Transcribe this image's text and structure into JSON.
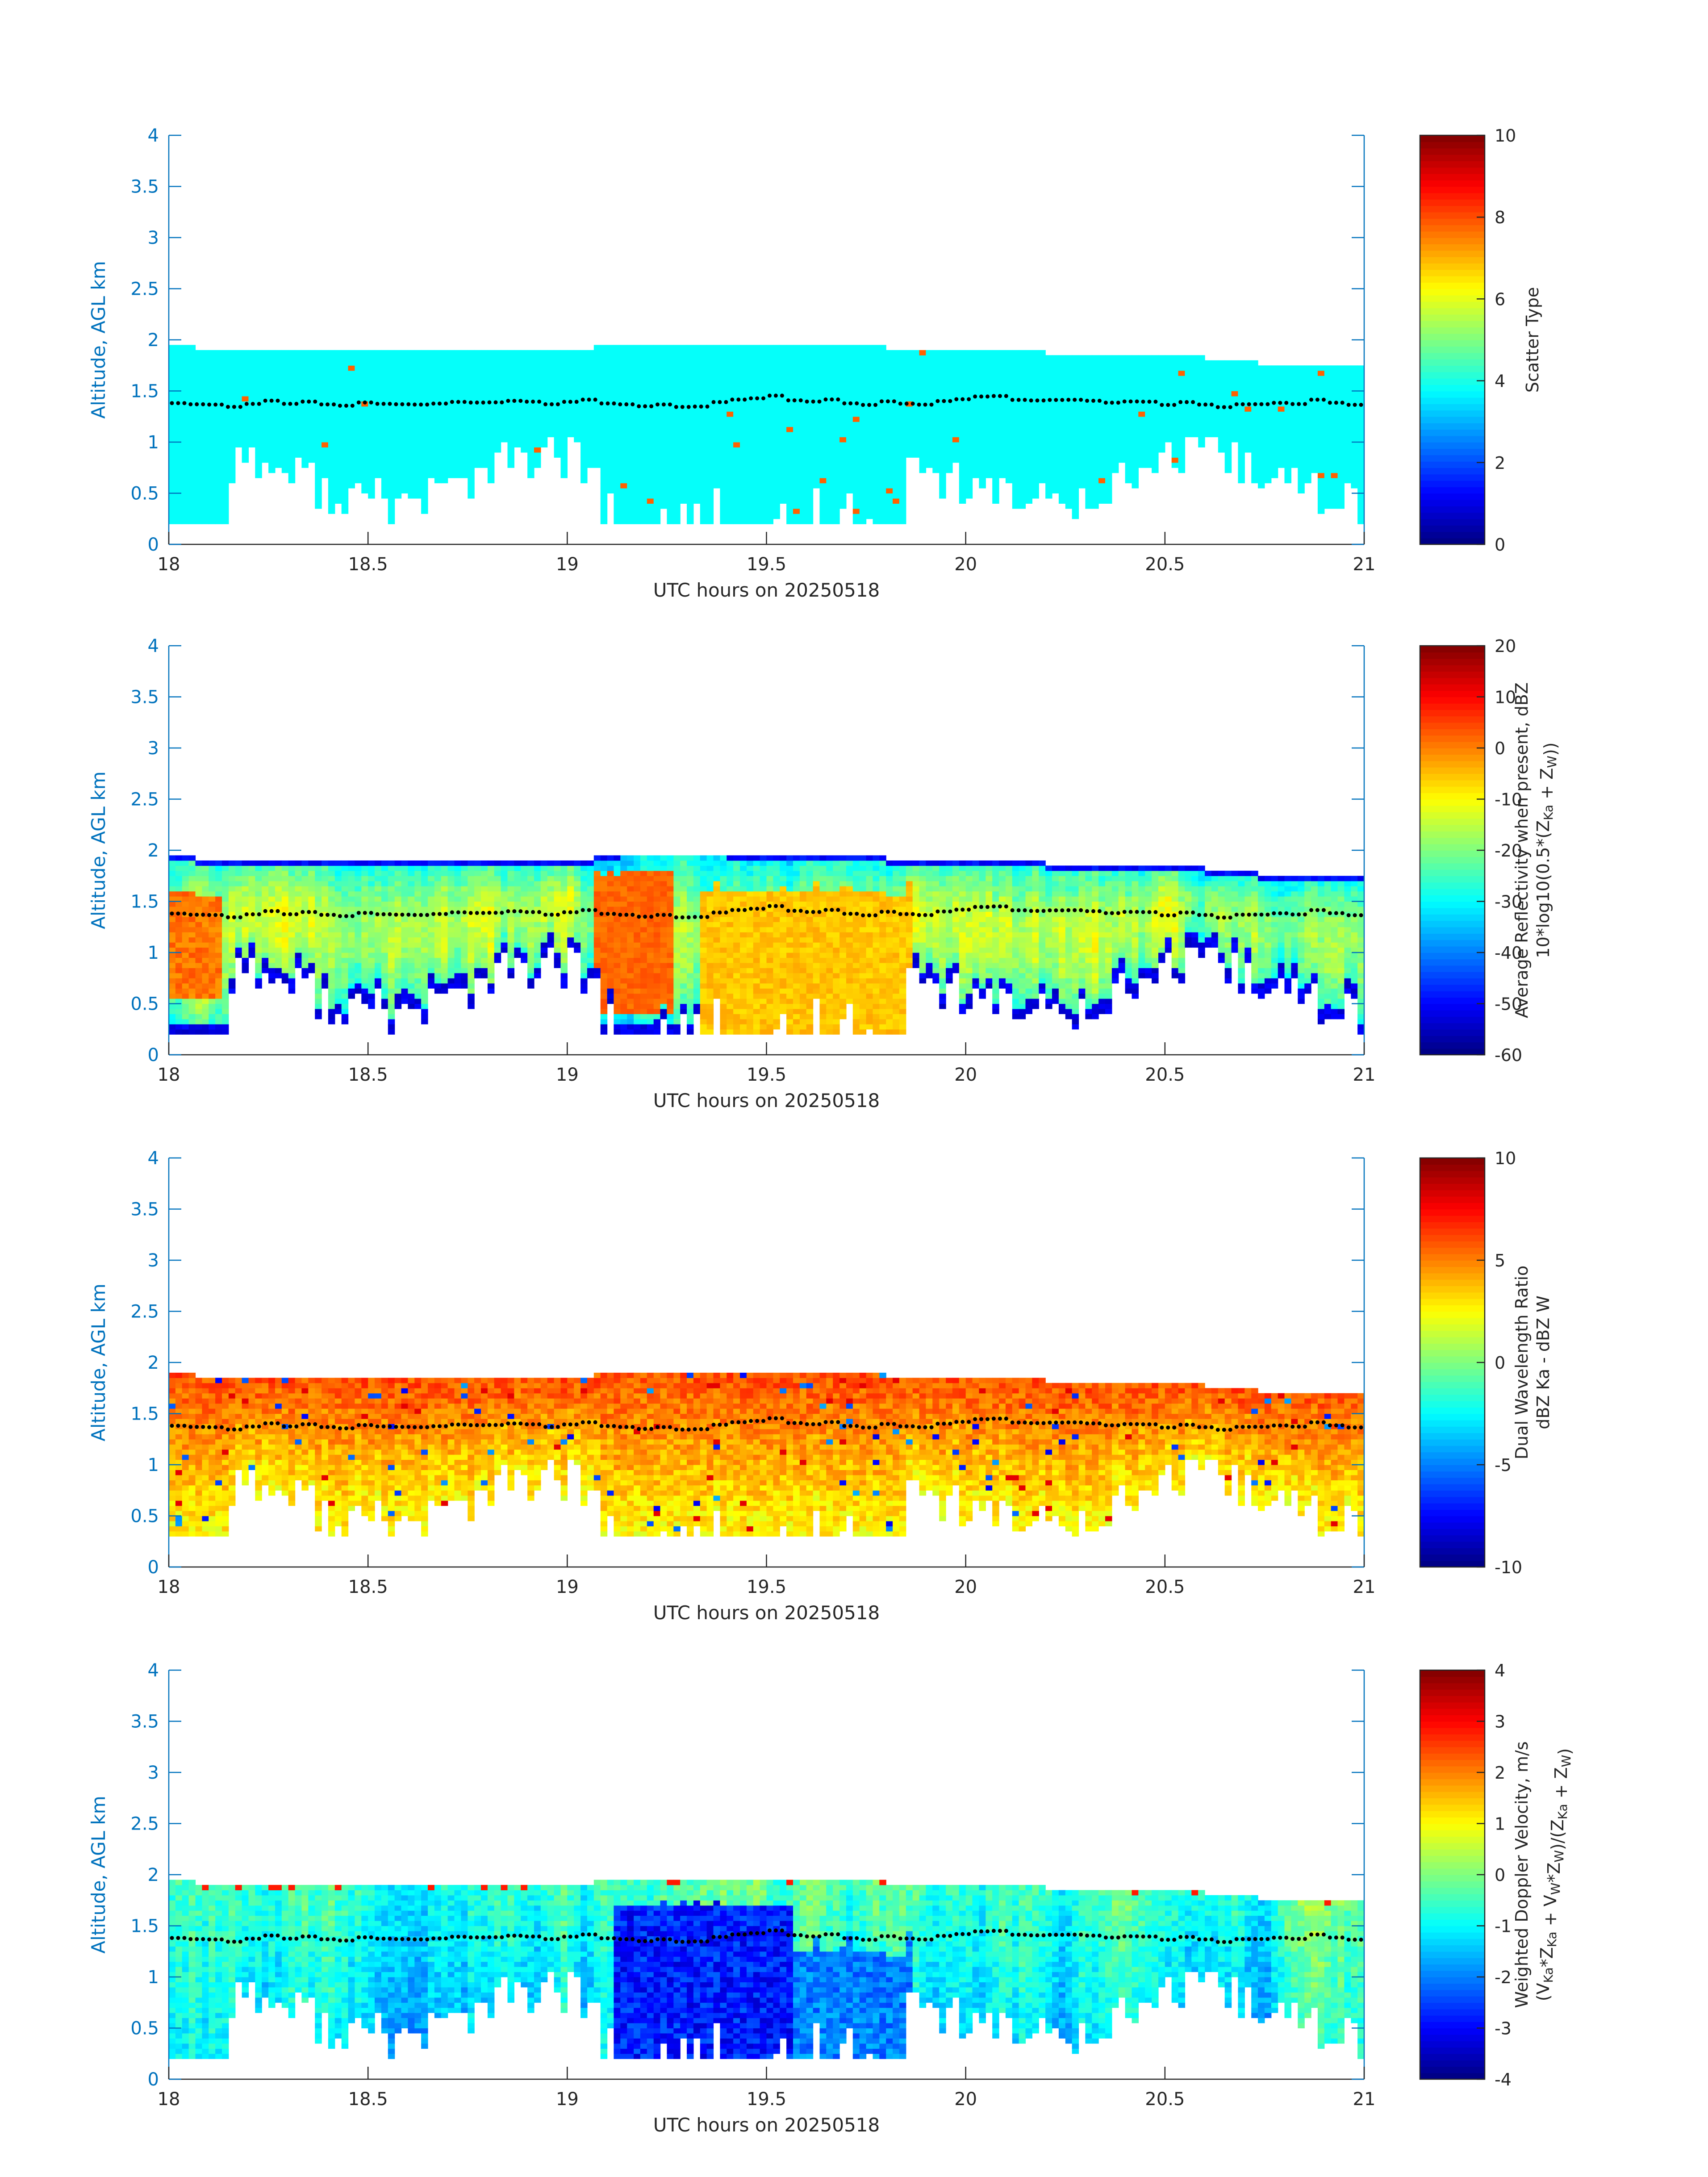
{
  "figure": {
    "date_label": "20250518",
    "x_axis_label": "UTC hours on 20250518"
  },
  "chart_data": [
    {
      "type": "heatmap",
      "panel": "scatter-type",
      "xlabel": "UTC hours on 20250518",
      "ylabel": "Altitude, AGL km",
      "xlim": [
        18,
        21
      ],
      "ylim": [
        0,
        4
      ],
      "xticks": [
        18,
        18.5,
        19,
        19.5,
        20,
        20.5,
        21
      ],
      "yticks": [
        0,
        0.5,
        1,
        1.5,
        2,
        2.5,
        3,
        3.5,
        4
      ],
      "colorbar": {
        "label_lines": [
          "Scatter Type"
        ],
        "range": [
          0,
          10
        ],
        "ticks": [
          0,
          2,
          4,
          6,
          8,
          10
        ]
      },
      "colormap": "jet",
      "dominant_value": 3.8,
      "rare_value": 7.8,
      "cloud_base_km": 0.18,
      "melting_layer_dots_km": 1.4,
      "top_km": [
        1.93,
        1.87,
        1.87,
        1.87,
        1.87,
        1.87,
        1.87,
        1.87,
        1.87,
        1.87,
        1.87,
        1.87,
        1.87,
        1.87,
        1.87,
        1.87,
        1.92,
        1.95,
        1.95,
        1.95,
        1.95,
        1.93,
        1.93,
        1.93,
        1.93,
        1.93,
        1.93,
        1.87,
        1.87,
        1.87,
        1.87,
        1.87,
        1.87,
        1.83,
        1.83,
        1.83,
        1.83,
        1.83,
        1.83,
        1.77,
        1.77,
        1.74,
        1.74,
        1.74,
        1.74
      ]
    },
    {
      "type": "heatmap",
      "panel": "reflectivity",
      "xlabel": "UTC hours on 20250518",
      "ylabel": "Altitude, AGL km",
      "xlim": [
        18,
        21
      ],
      "ylim": [
        0,
        4
      ],
      "xticks": [
        18,
        18.5,
        19,
        19.5,
        20,
        20.5,
        21
      ],
      "yticks": [
        0,
        0.5,
        1,
        1.5,
        2,
        2.5,
        3,
        3.5,
        4
      ],
      "colorbar": {
        "label_lines": [
          "Average Reflectivity when present, dBZ",
          "10*log10(0.5*(Z_Ka + Z_W))"
        ],
        "range": [
          -60,
          20
        ],
        "ticks": [
          -60,
          -50,
          -40,
          -30,
          -20,
          -10,
          0,
          10,
          20
        ]
      },
      "colormap": "jet",
      "value_range_dbz": [
        -55,
        5
      ],
      "melting_layer_dots_km": 1.4
    },
    {
      "type": "heatmap",
      "panel": "dual-wavelength-ratio",
      "xlabel": "UTC hours on 20250518",
      "ylabel": "Altitude, AGL km",
      "xlim": [
        18,
        21
      ],
      "ylim": [
        0,
        4
      ],
      "xticks": [
        18,
        18.5,
        19,
        19.5,
        20,
        20.5,
        21
      ],
      "yticks": [
        0,
        0.5,
        1,
        1.5,
        2,
        2.5,
        3,
        3.5,
        4
      ],
      "colorbar": {
        "label_lines": [
          "Dual Wavelength Ratio",
          "dBZ Ka - dBZ W"
        ],
        "range": [
          -10,
          10
        ],
        "ticks": [
          -10,
          -5,
          0,
          5,
          10
        ]
      },
      "colormap": "jet",
      "value_range_db": [
        -2,
        8
      ],
      "melting_layer_dots_km": 1.4
    },
    {
      "type": "heatmap",
      "panel": "doppler-velocity",
      "xlabel": "UTC hours on 20250518",
      "ylabel": "Altitude, AGL km",
      "xlim": [
        18,
        21
      ],
      "ylim": [
        0,
        4
      ],
      "xticks": [
        18,
        18.5,
        19,
        19.5,
        20,
        20.5,
        21
      ],
      "yticks": [
        0,
        0.5,
        1,
        1.5,
        2,
        2.5,
        3,
        3.5,
        4
      ],
      "colorbar": {
        "label_lines": [
          "Weighted Doppler Velocity, m/s",
          "(V_Ka*Z_Ka + V_W*Z_W)/(Z_Ka + Z_W)"
        ],
        "range": [
          -4,
          4
        ],
        "ticks": [
          -4,
          -3,
          -2,
          -1,
          0,
          1,
          2,
          3,
          4
        ]
      },
      "colormap": "jet",
      "value_range_ms": [
        -3.6,
        1.5
      ],
      "melting_layer_dots_km": 1.4
    }
  ]
}
